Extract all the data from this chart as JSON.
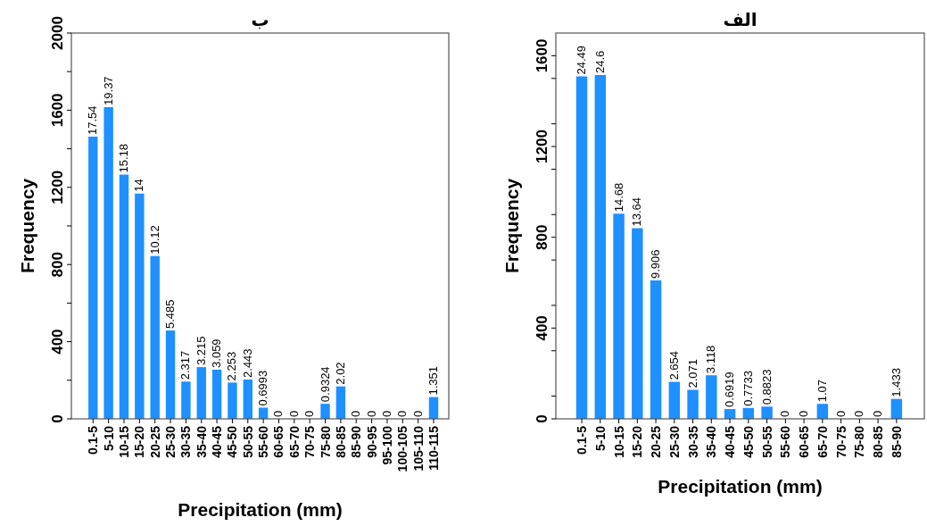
{
  "chart_data": [
    {
      "type": "bar",
      "title": "ب",
      "xlabel": "Precipitation (mm)",
      "ylabel": "Frequency",
      "categories": [
        "0.1-5",
        "5-10",
        "10-15",
        "15-20",
        "20-25",
        "25-30",
        "30-35",
        "35-40",
        "40-45",
        "45-50",
        "50-55",
        "55-60",
        "60-65",
        "65-70",
        "70-75",
        "75-80",
        "80-85",
        "85-90",
        "90-95",
        "95-100",
        "100-105",
        "105-110",
        "110-115"
      ],
      "values": [
        1463,
        1616,
        1266,
        1168,
        844,
        458,
        193,
        268,
        255,
        188,
        204,
        58,
        0,
        0,
        0,
        78,
        168,
        0,
        0,
        0,
        0,
        0,
        113
      ],
      "annotations": [
        {
          "text": "17.54",
          "x": "0.1-5",
          "y": 1463
        },
        {
          "text": "19.37",
          "x": "5-10",
          "y": 1616
        },
        {
          "text": "15.18",
          "x": "10-15",
          "y": 1266
        },
        {
          "text": "14",
          "x": "15-20",
          "y": 1168
        },
        {
          "text": "10.12",
          "x": "20-25",
          "y": 844
        },
        {
          "text": "5.485",
          "x": "25-30",
          "y": 458
        },
        {
          "text": "2.317",
          "x": "30-35",
          "y": 193
        },
        {
          "text": "3.215",
          "x": "35-40",
          "y": 268
        },
        {
          "text": "3.059",
          "x": "40-45",
          "y": 255
        },
        {
          "text": "2.253",
          "x": "45-50",
          "y": 188
        },
        {
          "text": "2.443",
          "x": "50-55",
          "y": 204
        },
        {
          "text": "0.6993",
          "x": "55-60",
          "y": 58
        },
        {
          "text": "0",
          "x": "60-65",
          "y": 0
        },
        {
          "text": "0",
          "x": "65-70",
          "y": 0
        },
        {
          "text": "0",
          "x": "70-75",
          "y": 0
        },
        {
          "text": "0.9324",
          "x": "75-80",
          "y": 78
        },
        {
          "text": "2.02",
          "x": "80-85",
          "y": 168
        },
        {
          "text": "0",
          "x": "85-90",
          "y": 0
        },
        {
          "text": "0",
          "x": "90-95",
          "y": 0
        },
        {
          "text": "0",
          "x": "95-100",
          "y": 0
        },
        {
          "text": "0",
          "x": "100-105",
          "y": 0
        },
        {
          "text": "0",
          "x": "105-110",
          "y": 0
        },
        {
          "text": "1.351",
          "x": "110-115",
          "y": 113
        }
      ],
      "color": "#1e90ff",
      "ylim": [
        0,
        2000
      ],
      "yticks": [
        0,
        {
          "value": 200,
          "label": null
        },
        400,
        {
          "value": 600,
          "label": null
        },
        800,
        {
          "value": 1000,
          "label": null
        },
        1200,
        {
          "value": 1400,
          "label": null
        },
        1600,
        {
          "value": 1800,
          "label": null
        },
        2000
      ]
    },
    {
      "type": "bar",
      "title": "الف",
      "xlabel": "Precipitation (mm)",
      "ylabel": "Frequency",
      "categories": [
        "0.1-5",
        "5-10",
        "10-15",
        "15-20",
        "20-25",
        "25-30",
        "30-35",
        "35-40",
        "40-45",
        "45-50",
        "50-55",
        "55-60",
        "60-65",
        "65-70",
        "70-75",
        "75-80",
        "80-85",
        "85-90"
      ],
      "values": [
        1509,
        1515,
        904,
        840,
        610,
        163,
        128,
        192,
        43,
        48,
        54,
        0,
        0,
        66,
        0,
        0,
        0,
        88
      ],
      "annotations": [
        {
          "text": "24.49",
          "x": "0.1-5",
          "y": 1509
        },
        {
          "text": "24.6",
          "x": "5-10",
          "y": 1515
        },
        {
          "text": "14.68",
          "x": "10-15",
          "y": 904
        },
        {
          "text": "13.64",
          "x": "15-20",
          "y": 840
        },
        {
          "text": "9.906",
          "x": "20-25",
          "y": 610
        },
        {
          "text": "2.654",
          "x": "25-30",
          "y": 163
        },
        {
          "text": "2.071",
          "x": "30-35",
          "y": 128
        },
        {
          "text": "3.118",
          "x": "35-40",
          "y": 192
        },
        {
          "text": "0.6919",
          "x": "40-45",
          "y": 43
        },
        {
          "text": "0.7733",
          "x": "45-50",
          "y": 48
        },
        {
          "text": "0.8823",
          "x": "50-55",
          "y": 54
        },
        {
          "text": "0",
          "x": "55-60",
          "y": 0
        },
        {
          "text": "0",
          "x": "60-65",
          "y": 0
        },
        {
          "text": "1.07",
          "x": "65-70",
          "y": 66
        },
        {
          "text": "0",
          "x": "70-75",
          "y": 0
        },
        {
          "text": "0",
          "x": "75-80",
          "y": 0
        },
        {
          "text": "0",
          "x": "80-85",
          "y": 0
        },
        {
          "text": "1.433",
          "x": "85-90",
          "y": 88
        }
      ],
      "color": "#1e90ff",
      "ylim": [
        0,
        1700
      ],
      "yticks": [
        0,
        {
          "value": 100,
          "label": null
        },
        {
          "value": 300,
          "label": null
        },
        400,
        {
          "value": 500,
          "label": null
        },
        {
          "value": 700,
          "label": null
        },
        800,
        {
          "value": 900,
          "label": null
        },
        {
          "value": 1100,
          "label": null
        },
        1200,
        {
          "value": 1300,
          "label": null
        },
        {
          "value": 1500,
          "label": null
        },
        1600
      ]
    }
  ]
}
